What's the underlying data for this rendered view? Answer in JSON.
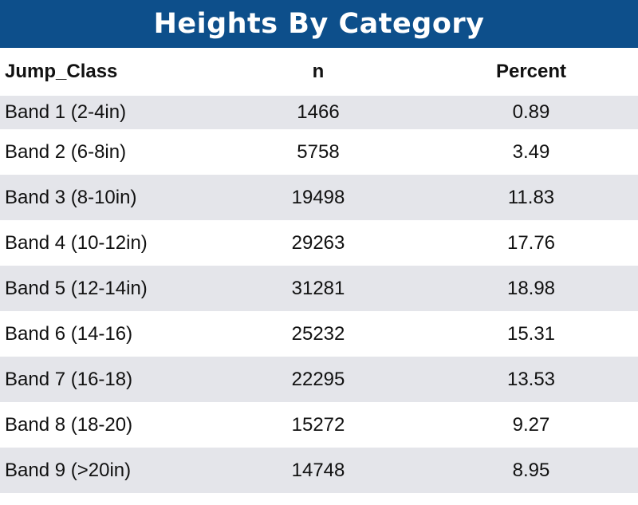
{
  "chart_data": {
    "type": "table",
    "title": "Heights By Category",
    "columns": [
      "Jump_Class",
      "n",
      "Percent"
    ],
    "rows": [
      [
        "Band 1 (2-4in)",
        "1466",
        "0.89"
      ],
      [
        "Band 2 (6-8in)",
        "5758",
        "3.49"
      ],
      [
        "Band 3 (8-10in)",
        "19498",
        "11.83"
      ],
      [
        "Band 4 (10-12in)",
        "29263",
        "17.76"
      ],
      [
        "Band 5 (12-14in)",
        "31281",
        "18.98"
      ],
      [
        "Band 6 (14-16)",
        "25232",
        "15.31"
      ],
      [
        "Band 7 (16-18)",
        "22295",
        "13.53"
      ],
      [
        "Band 8 (18-20)",
        "15272",
        "9.27"
      ],
      [
        "Band 9 (>20in)",
        "14748",
        "8.95"
      ]
    ]
  },
  "colors": {
    "header_bg": "#0d4f8b",
    "stripe": "#e4e5ea"
  }
}
